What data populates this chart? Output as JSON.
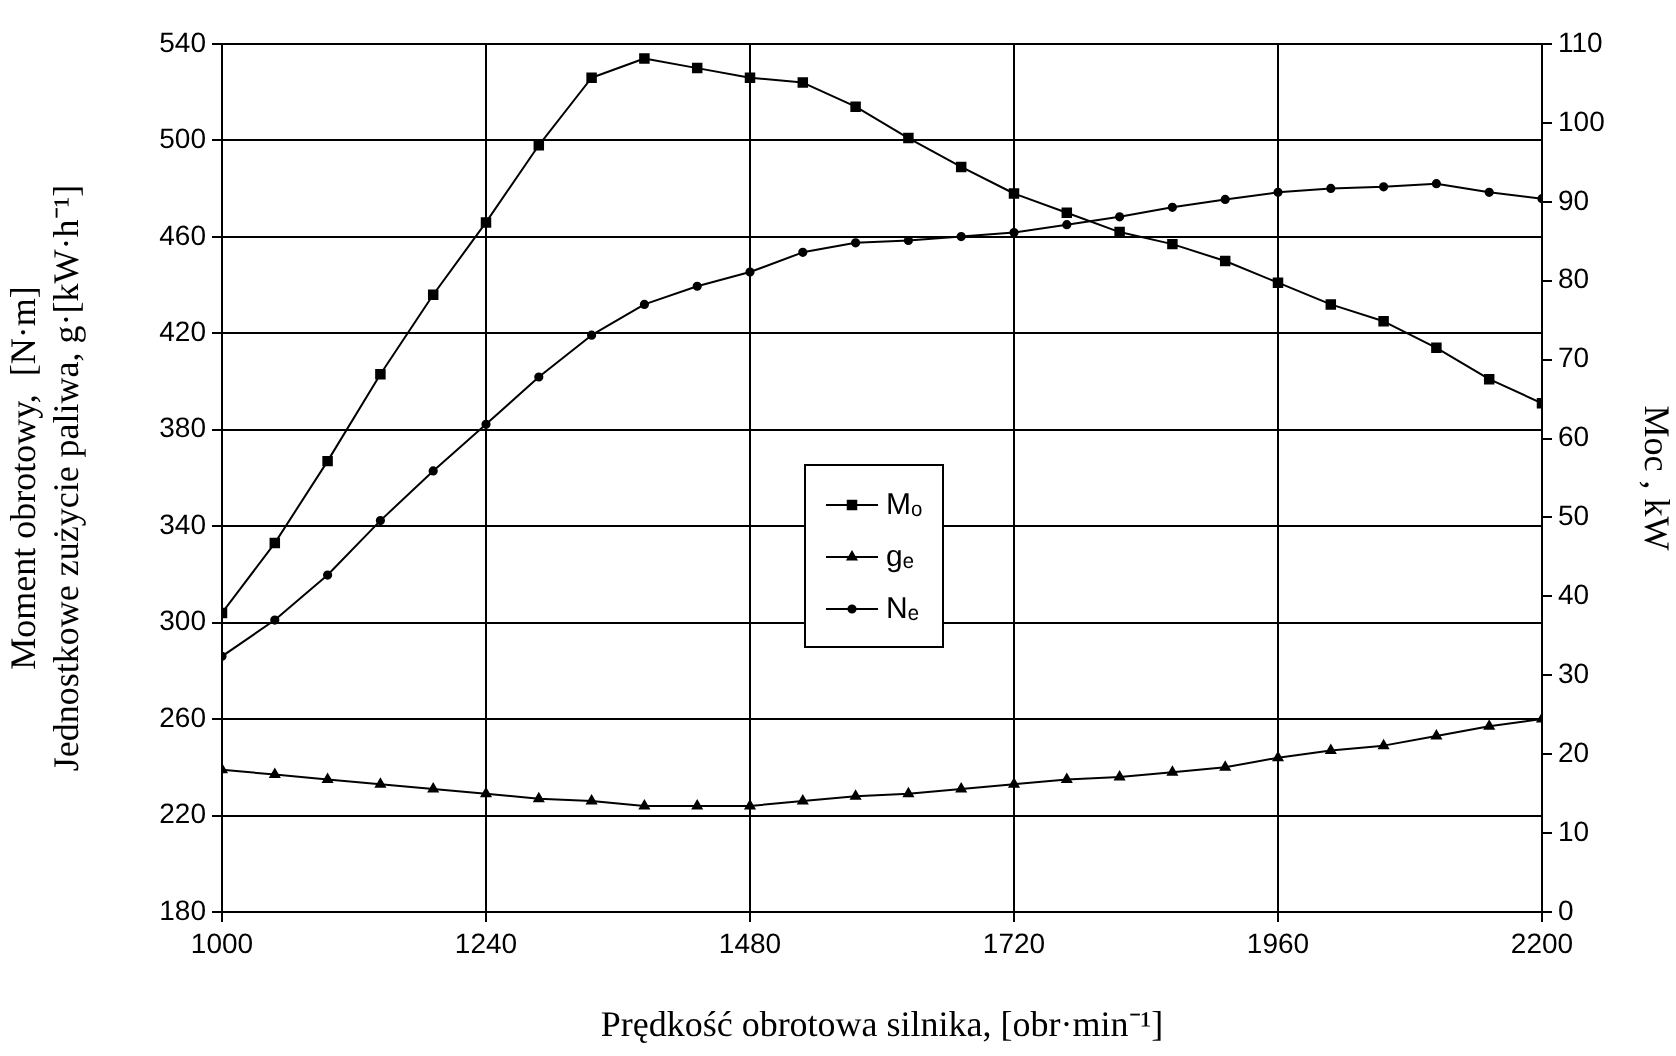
{
  "chart_data": {
    "type": "line",
    "xlabel": "Prędkość obrotowa silnika, [obr·min⁻¹]",
    "ylabel": "Moment obrotowy,  [N·m]\nJednostkowe zużycie paliwa, g·[kW·h⁻¹]",
    "y2label": "Moc , kW",
    "x": [
      1000,
      1048,
      1096,
      1144,
      1192,
      1240,
      1288,
      1336,
      1384,
      1432,
      1480,
      1528,
      1576,
      1624,
      1672,
      1720,
      1768,
      1816,
      1864,
      1912,
      1960,
      2008,
      2056,
      2104,
      2152,
      2200
    ],
    "series": [
      {
        "name": "Mₒ",
        "color": "#000000",
        "marker": "square",
        "values": [
          304,
          333,
          367,
          403,
          436,
          466,
          498,
          526,
          534,
          530,
          526,
          524,
          514,
          501,
          489,
          478,
          470,
          462,
          457,
          450,
          441,
          432,
          425,
          414,
          401,
          391
        ]
      },
      {
        "name": "gₑ",
        "color": "#000000",
        "marker": "triangle",
        "values": [
          239,
          237,
          235,
          233,
          231,
          229,
          227,
          226,
          224,
          224,
          224,
          226,
          228,
          229,
          231,
          233,
          235,
          236,
          238,
          240,
          244,
          247,
          249,
          253,
          257,
          260
        ]
      },
      {
        "name": "Nₑ",
        "color": "#000000",
        "marker": "circle",
        "axis": "y2",
        "values": [
          32.4,
          37,
          42.7,
          49.6,
          55.9,
          61.8,
          67.8,
          73.1,
          77,
          79.3,
          81.1,
          83.6,
          84.8,
          85.1,
          85.6,
          86.1,
          87.1,
          88.1,
          89.3,
          90.3,
          91.2,
          91.7,
          91.9,
          92.3,
          91.2,
          90.4
        ]
      }
    ],
    "xlim": [
      1000,
      2200
    ],
    "xticks": [
      1000,
      1240,
      1480,
      1720,
      1960,
      2200
    ],
    "ylim": [
      180,
      540
    ],
    "yticks": [
      180,
      220,
      260,
      300,
      340,
      380,
      420,
      460,
      500,
      540
    ],
    "y2lim": [
      0,
      110
    ],
    "y2ticks": [
      0,
      10,
      20,
      30,
      40,
      50,
      60,
      70,
      80,
      90,
      100,
      110
    ],
    "grid": true,
    "legend": "center",
    "line_style": "solid"
  }
}
